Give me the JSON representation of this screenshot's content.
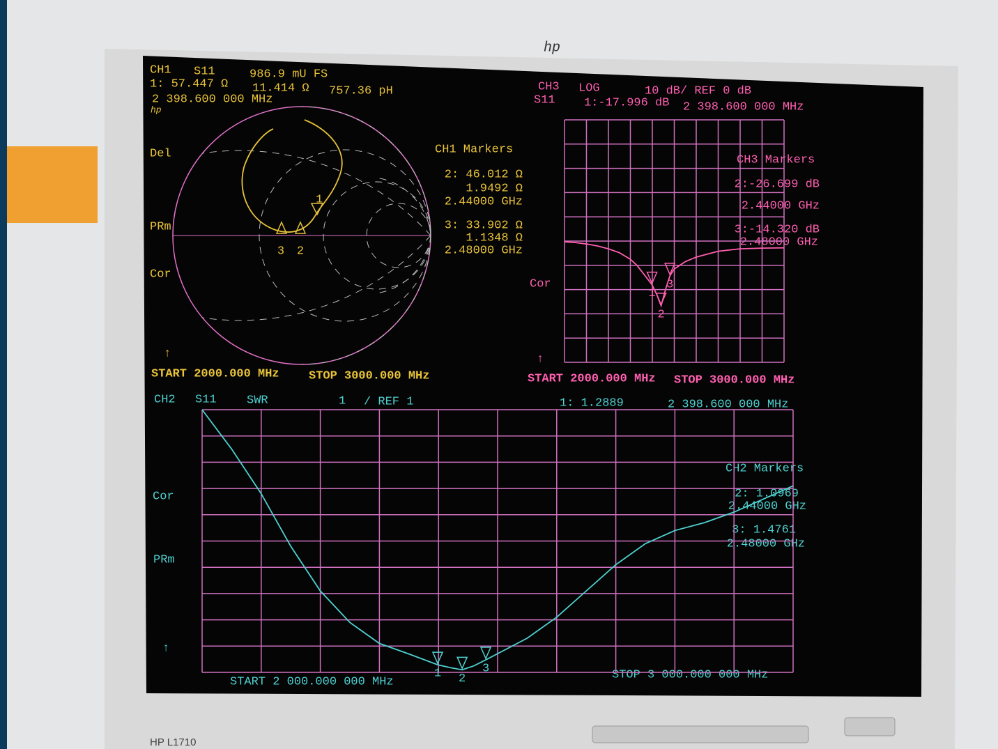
{
  "monitor": {
    "brand": "hp",
    "model": "HP L1710"
  },
  "ch1": {
    "header": [
      "CH1",
      "S11",
      "986.9 mU FS",
      "1: 57.447 Ω",
      "11.414 Ω",
      "757.36 pH",
      "2 398.600 000 MHz",
      "hp"
    ],
    "side_labels": [
      "Del",
      "PRm",
      "Cor"
    ],
    "start": "START 2000.000 MHz",
    "stop": "STOP 3000.000 MHz",
    "markers_title": "CH1 Markers",
    "markers": [
      {
        "number": "1"
      },
      {
        "number": "2",
        "lines": [
          "2: 46.012 Ω",
          "1.9492 Ω",
          "2.44000 GHz"
        ]
      },
      {
        "number": "3",
        "lines": [
          "3: 33.902 Ω",
          "1.1348 Ω",
          "2.48000 GHz"
        ]
      }
    ]
  },
  "chart_data": [
    {
      "type": "line",
      "header": [
        "CH3",
        "LOG",
        "10 dB/ REF 0 dB",
        "S11"
      ],
      "side_label": "Cor",
      "start": "START 2000.000 MHz",
      "stop": "STOP 3000.000 MHz",
      "markers_title": "CH3 Markers",
      "color": "#ff5fb0",
      "grid_color": "#d070c0",
      "xlim": [
        2000,
        3000
      ],
      "ylim": [
        -50,
        50
      ],
      "x": [
        2000,
        2050,
        2100,
        2150,
        2200,
        2250,
        2300,
        2330,
        2360,
        2398.6,
        2420,
        2440,
        2460,
        2480,
        2500,
        2550,
        2600,
        2700,
        2800,
        2900,
        3000
      ],
      "values": [
        -0.3,
        -0.6,
        -1.2,
        -2.0,
        -3.2,
        -4.8,
        -7.5,
        -10,
        -13.5,
        -17.996,
        -22,
        -26.699,
        -20,
        -14.32,
        -11.5,
        -8.5,
        -6.6,
        -4.2,
        -3.2,
        -2.9,
        -2.8
      ],
      "markers": [
        {
          "number": "1",
          "value": -17.996,
          "freq": 2398.6,
          "value_label": "1:-17.996 dB",
          "freq_label": "2 398.600 000 MHz"
        },
        {
          "number": "2",
          "value": -26.699,
          "freq": 2440,
          "value_label": "2:-26.699 dB",
          "freq_label": "2.44000 GHz"
        },
        {
          "number": "3",
          "value": -14.32,
          "freq": 2480,
          "value_label": "3:-14.320 dB",
          "freq_label": "2.48000 GHz"
        }
      ]
    },
    {
      "type": "line",
      "header": [
        "CH2",
        "S11",
        "SWR",
        "1",
        "/ REF 1"
      ],
      "side_labels": [
        "Cor",
        "PRm"
      ],
      "start": "START 2 000.000 000 MHz",
      "stop": "STOP 3 000.000 000 MHz",
      "markers_title": "CH2 Markers",
      "color": "#4fd0d0",
      "grid_color": "#d070c0",
      "xlim": [
        2000,
        3000
      ],
      "ylim": [
        1,
        11
      ],
      "x": [
        2000,
        2050,
        2100,
        2150,
        2200,
        2250,
        2300,
        2350,
        2398.6,
        2420,
        2440,
        2460,
        2480,
        2550,
        2600,
        2650,
        2700,
        2750,
        2800,
        2850,
        2900,
        2950,
        3000
      ],
      "values": [
        11,
        9.5,
        7.8,
        5.8,
        4.1,
        2.9,
        2.1,
        1.7,
        1.2889,
        1.18,
        1.0969,
        1.25,
        1.4761,
        2.3,
        3.1,
        4.1,
        5.1,
        5.9,
        6.4,
        6.7,
        7.1,
        7.6,
        8.1
      ],
      "markers": [
        {
          "number": "1",
          "value": 1.2889,
          "freq": 2398.6,
          "value_label": "1: 1.2889",
          "freq_label": "2 398.600 000 MHz"
        },
        {
          "number": "2",
          "value": 1.0969,
          "freq": 2440,
          "value_label": "2: 1.0969",
          "freq_label": "2.44000 GHz"
        },
        {
          "number": "3",
          "value": 1.4761,
          "freq": 2480,
          "value_label": "3: 1.4761",
          "freq_label": "2.48000 GHz"
        }
      ]
    }
  ]
}
